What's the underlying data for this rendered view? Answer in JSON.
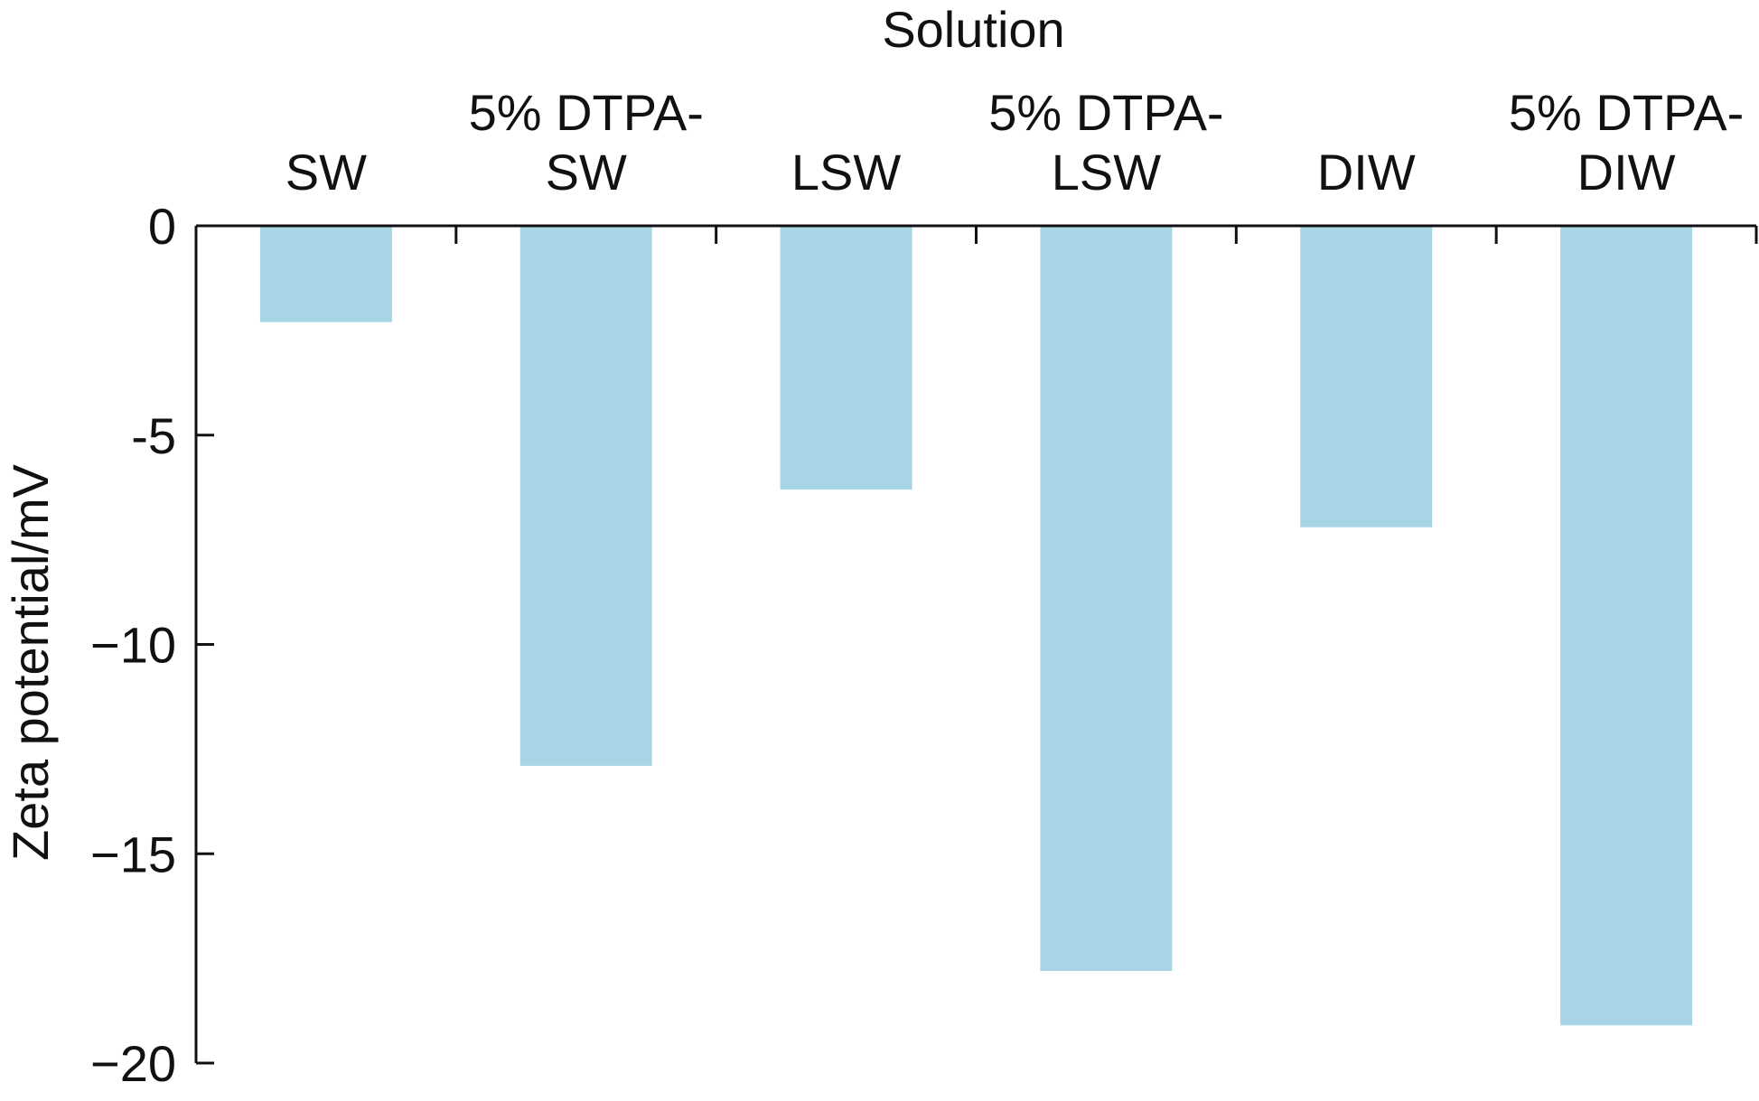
{
  "chart_data": {
    "type": "bar",
    "xlabel": "Solution",
    "ylabel": "Zeta potential/mV",
    "categories": [
      [
        "SW"
      ],
      [
        "5% DTPA-",
        "SW"
      ],
      [
        "LSW"
      ],
      [
        "5% DTPA-",
        "LSW"
      ],
      [
        "DIW"
      ],
      [
        "5% DTPA-",
        "DIW"
      ]
    ],
    "values": [
      -2.3,
      -12.9,
      -6.3,
      -17.8,
      -7.2,
      -19.1
    ],
    "ylim": [
      -20,
      0
    ],
    "yticks": [
      0,
      -5,
      -10,
      -15,
      -20
    ],
    "ytick_labels": [
      "0",
      "-5",
      "−10",
      "−15",
      "−20"
    ],
    "x_axis_position": "top",
    "grid": false,
    "legend": "none",
    "bar_color": "#a8d5e6",
    "axis_color": "#111111"
  }
}
